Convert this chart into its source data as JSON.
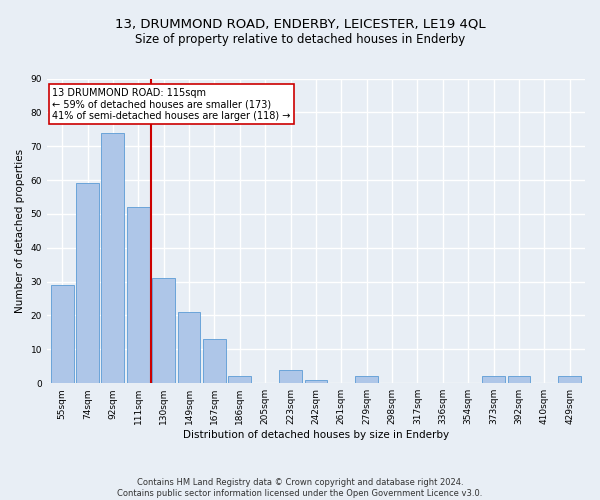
{
  "title_line1": "13, DRUMMOND ROAD, ENDERBY, LEICESTER, LE19 4QL",
  "title_line2": "Size of property relative to detached houses in Enderby",
  "xlabel": "Distribution of detached houses by size in Enderby",
  "ylabel": "Number of detached properties",
  "footer_line1": "Contains HM Land Registry data © Crown copyright and database right 2024.",
  "footer_line2": "Contains public sector information licensed under the Open Government Licence v3.0.",
  "bin_labels": [
    "55sqm",
    "74sqm",
    "92sqm",
    "111sqm",
    "130sqm",
    "149sqm",
    "167sqm",
    "186sqm",
    "205sqm",
    "223sqm",
    "242sqm",
    "261sqm",
    "279sqm",
    "298sqm",
    "317sqm",
    "336sqm",
    "354sqm",
    "373sqm",
    "392sqm",
    "410sqm",
    "429sqm"
  ],
  "bar_values": [
    29,
    59,
    74,
    52,
    31,
    21,
    13,
    2,
    0,
    4,
    1,
    0,
    2,
    0,
    0,
    0,
    0,
    2,
    2,
    0,
    2
  ],
  "bar_color": "#aec6e8",
  "bar_edge_color": "#5b9bd5",
  "vline_x": 3.5,
  "vline_color": "#cc0000",
  "annotation_text_line1": "13 DRUMMOND ROAD: 115sqm",
  "annotation_text_line2": "← 59% of detached houses are smaller (173)",
  "annotation_text_line3": "41% of semi-detached houses are larger (118) →",
  "annotation_box_color": "#ffffff",
  "annotation_box_edge_color": "#cc0000",
  "ylim": [
    0,
    90
  ],
  "yticks": [
    0,
    10,
    20,
    30,
    40,
    50,
    60,
    70,
    80,
    90
  ],
  "bg_color": "#e8eef5",
  "plot_bg_color": "#e8eef5",
  "grid_color": "#ffffff",
  "title_fontsize": 9.5,
  "subtitle_fontsize": 8.5,
  "axis_label_fontsize": 7.5,
  "tick_fontsize": 6.5,
  "annot_fontsize": 7,
  "footer_fontsize": 6
}
